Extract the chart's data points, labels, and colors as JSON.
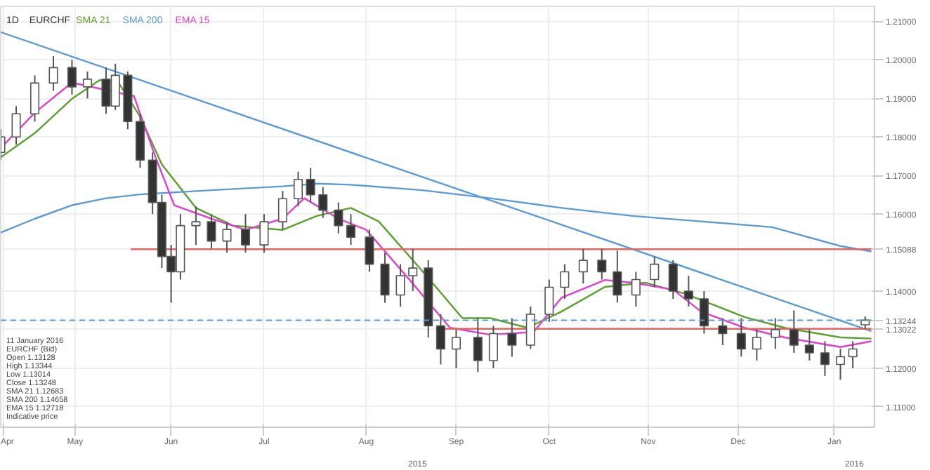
{
  "chart_data": {
    "type": "candlestick",
    "title": "EURCHF",
    "subtitle": "1D",
    "x": [
      "2015-04-07",
      "2015-04-12",
      "2015-04-18",
      "2015-04-24",
      "2015-04-30",
      "2015-05-05",
      "2015-05-11",
      "2015-05-14",
      "2015-05-18",
      "2015-05-22",
      "2015-05-26",
      "2015-05-29",
      "2015-06-01",
      "2015-06-04",
      "2015-06-09",
      "2015-06-14",
      "2015-06-19",
      "2015-06-25",
      "2015-07-01",
      "2015-07-07",
      "2015-07-12",
      "2015-07-16",
      "2015-07-20",
      "2015-07-25",
      "2015-07-29",
      "2015-08-04",
      "2015-08-09",
      "2015-08-14",
      "2015-08-18",
      "2015-08-23",
      "2015-08-27",
      "2015-09-01",
      "2015-09-08",
      "2015-09-13",
      "2015-09-19",
      "2015-09-25",
      "2015-10-01",
      "2015-10-06",
      "2015-10-12",
      "2015-10-18",
      "2015-10-23",
      "2015-10-29",
      "2015-11-04",
      "2015-11-10",
      "2015-11-15",
      "2015-11-20",
      "2015-11-26",
      "2015-12-02",
      "2015-12-07",
      "2015-12-13",
      "2015-12-19",
      "2015-12-24",
      "2015-12-29",
      "2016-01-03",
      "2016-01-07",
      "2016-01-11"
    ],
    "ohlc": [
      [
        1.176,
        1.182,
        1.174,
        1.18
      ],
      [
        1.18,
        1.188,
        1.178,
        1.186
      ],
      [
        1.186,
        1.196,
        1.184,
        1.194
      ],
      [
        1.194,
        1.201,
        1.192,
        1.198
      ],
      [
        1.198,
        1.2,
        1.191,
        1.193
      ],
      [
        1.193,
        1.197,
        1.19,
        1.195
      ],
      [
        1.195,
        1.198,
        1.186,
        1.188
      ],
      [
        1.188,
        1.199,
        1.187,
        1.196
      ],
      [
        1.196,
        1.197,
        1.182,
        1.184
      ],
      [
        1.184,
        1.186,
        1.172,
        1.174
      ],
      [
        1.174,
        1.176,
        1.16,
        1.163
      ],
      [
        1.163,
        1.165,
        1.146,
        1.149
      ],
      [
        1.149,
        1.152,
        1.137,
        1.145
      ],
      [
        1.145,
        1.16,
        1.143,
        1.157
      ],
      [
        1.157,
        1.162,
        1.152,
        1.158
      ],
      [
        1.158,
        1.16,
        1.151,
        1.153
      ],
      [
        1.153,
        1.158,
        1.15,
        1.156
      ],
      [
        1.156,
        1.16,
        1.15,
        1.152
      ],
      [
        1.152,
        1.16,
        1.15,
        1.158
      ],
      [
        1.158,
        1.166,
        1.156,
        1.164
      ],
      [
        1.164,
        1.171,
        1.162,
        1.169
      ],
      [
        1.169,
        1.172,
        1.163,
        1.165
      ],
      [
        1.165,
        1.167,
        1.159,
        1.161
      ],
      [
        1.161,
        1.163,
        1.155,
        1.157
      ],
      [
        1.157,
        1.16,
        1.152,
        1.154
      ],
      [
        1.154,
        1.156,
        1.145,
        1.147
      ],
      [
        1.147,
        1.15,
        1.137,
        1.139
      ],
      [
        1.139,
        1.147,
        1.136,
        1.144
      ],
      [
        1.144,
        1.151,
        1.14,
        1.146
      ],
      [
        1.146,
        1.148,
        1.128,
        1.131
      ],
      [
        1.131,
        1.134,
        1.121,
        1.125
      ],
      [
        1.125,
        1.13,
        1.12,
        1.128
      ],
      [
        1.128,
        1.133,
        1.119,
        1.122
      ],
      [
        1.122,
        1.131,
        1.12,
        1.129
      ],
      [
        1.129,
        1.133,
        1.123,
        1.126
      ],
      [
        1.126,
        1.136,
        1.125,
        1.134
      ],
      [
        1.134,
        1.143,
        1.132,
        1.141
      ],
      [
        1.141,
        1.147,
        1.138,
        1.145
      ],
      [
        1.145,
        1.151,
        1.142,
        1.148
      ],
      [
        1.148,
        1.151,
        1.143,
        1.145
      ],
      [
        1.145,
        1.1505,
        1.137,
        1.139
      ],
      [
        1.139,
        1.145,
        1.136,
        1.143
      ],
      [
        1.143,
        1.149,
        1.141,
        1.147
      ],
      [
        1.147,
        1.148,
        1.138,
        1.14
      ],
      [
        1.14,
        1.144,
        1.136,
        1.138
      ],
      [
        1.138,
        1.14,
        1.129,
        1.131
      ],
      [
        1.131,
        1.133,
        1.126,
        1.129
      ],
      [
        1.129,
        1.133,
        1.123,
        1.125
      ],
      [
        1.125,
        1.13,
        1.122,
        1.128
      ],
      [
        1.128,
        1.133,
        1.125,
        1.13
      ],
      [
        1.13,
        1.135,
        1.124,
        1.126
      ],
      [
        1.126,
        1.13,
        1.122,
        1.124
      ],
      [
        1.124,
        1.127,
        1.118,
        1.121
      ],
      [
        1.121,
        1.125,
        1.117,
        1.123
      ],
      [
        1.123,
        1.127,
        1.12,
        1.125
      ],
      [
        1.13128,
        1.13344,
        1.13014,
        1.13248
      ]
    ],
    "series": [
      {
        "name": "SMA 21",
        "type": "line",
        "color": "#5aa02c",
        "x": [
          "2015-04-07",
          "2015-04-18",
          "2015-04-30",
          "2015-05-09",
          "2015-05-15",
          "2015-05-22",
          "2015-05-29",
          "2015-06-09",
          "2015-06-21",
          "2015-07-07",
          "2015-07-18",
          "2015-07-29",
          "2015-08-07",
          "2015-08-21",
          "2015-09-03",
          "2015-09-12",
          "2015-09-24",
          "2015-10-05",
          "2015-10-19",
          "2015-11-01",
          "2015-11-14",
          "2015-12-03",
          "2015-12-16",
          "2016-01-03",
          "2016-01-13"
        ],
        "values": [
          1.1747,
          1.181,
          1.1899,
          1.1948,
          1.1941,
          1.1853,
          1.1729,
          1.1616,
          1.157,
          1.1559,
          1.1595,
          1.1616,
          1.1581,
          1.1453,
          1.133,
          1.133,
          1.1305,
          1.1347,
          1.1411,
          1.1422,
          1.1393,
          1.1333,
          1.1305,
          1.128,
          1.1277
        ]
      },
      {
        "name": "SMA 200",
        "type": "line",
        "color": "#5b9bd5",
        "x": [
          "2015-04-07",
          "2015-04-18",
          "2015-04-30",
          "2015-05-11",
          "2015-05-22",
          "2015-06-14",
          "2015-07-07",
          "2015-07-18",
          "2015-07-29",
          "2015-08-21",
          "2015-09-12",
          "2015-10-05",
          "2015-10-28",
          "2015-11-19",
          "2015-12-12",
          "2016-01-03",
          "2016-01-13"
        ],
        "values": [
          1.1552,
          1.1588,
          1.1623,
          1.1641,
          1.1651,
          1.1662,
          1.1672,
          1.1679,
          1.1676,
          1.1662,
          1.1641,
          1.1616,
          1.1595,
          1.1581,
          1.1566,
          1.1517,
          1.1503
        ]
      },
      {
        "name": "EMA 15",
        "type": "line",
        "color": "#e040d0",
        "x": [
          "2015-04-07",
          "2015-04-18",
          "2015-04-30",
          "2015-05-20",
          "2015-05-27",
          "2015-06-02",
          "2015-06-14",
          "2015-06-25",
          "2015-07-07",
          "2015-07-14",
          "2015-07-25",
          "2015-08-03",
          "2015-08-17",
          "2015-08-30",
          "2015-09-12",
          "2015-09-26",
          "2015-10-05",
          "2015-10-19",
          "2015-10-28",
          "2015-11-10",
          "2015-11-19",
          "2015-12-03",
          "2015-12-16",
          "2016-01-03",
          "2016-01-13"
        ],
        "values": [
          1.1771,
          1.1863,
          1.1941,
          1.1906,
          1.1747,
          1.1623,
          1.1588,
          1.1559,
          1.1588,
          1.1641,
          1.1588,
          1.1559,
          1.1429,
          1.1305,
          1.1287,
          1.1294,
          1.1383,
          1.1429,
          1.1422,
          1.1404,
          1.1347,
          1.1305,
          1.128,
          1.1255,
          1.127
        ]
      },
      {
        "type": "line",
        "color": "#5b9bd5",
        "x": [
          "2015-04-07",
          "2016-01-13"
        ],
        "values": [
          1.2072,
          1.1296
        ]
      },
      {
        "type": "line",
        "color": "#e06666",
        "x": [
          "2015-05-19",
          "2016-01-13"
        ],
        "values": [
          1.15088,
          1.15088
        ]
      },
      {
        "type": "line",
        "color": "#e06666",
        "x": [
          "2015-08-27",
          "2016-01-13"
        ],
        "values": [
          1.13022,
          1.13022
        ]
      }
    ],
    "ref_lines": [
      {
        "axis": "y",
        "value": 1.13244,
        "color": "#5b9bd5",
        "line_style": "dashed"
      }
    ],
    "xlim": [
      "2015-04-07",
      "2016-01-14"
    ],
    "xticks": [
      {
        "value": "2015-04-08",
        "label": "Apr"
      },
      {
        "value": "2015-05-01",
        "label": "May"
      },
      {
        "value": "2015-06-01",
        "label": "Jun"
      },
      {
        "value": "2015-07-01",
        "label": "Jul"
      },
      {
        "value": "2015-08-03",
        "label": "Aug"
      },
      {
        "value": "2015-09-01",
        "label": "Sep"
      },
      {
        "value": "2015-10-01",
        "label": "Oct"
      },
      {
        "value": "2015-11-02",
        "label": "Nov"
      },
      {
        "value": "2015-12-01",
        "label": "Dec"
      },
      {
        "value": "2016-01-01",
        "label": "Jan"
      }
    ],
    "ylim": [
      1.1047,
      1.2139
    ],
    "yticks": [
      {
        "value": 1.11,
        "label": "1.11000"
      },
      {
        "value": 1.12,
        "label": "1.12000"
      },
      {
        "value": 1.13022,
        "label": "1.13022"
      },
      {
        "value": 1.13244,
        "label": "1.13244"
      },
      {
        "value": 1.14,
        "label": "1.14000"
      },
      {
        "value": 1.15088,
        "label": "1.15088"
      },
      {
        "value": 1.16,
        "label": "1.16000"
      },
      {
        "value": 1.17,
        "label": "1.17000"
      },
      {
        "value": 1.18,
        "label": "1.18000"
      },
      {
        "value": 1.19,
        "label": "1.19000"
      },
      {
        "value": 1.2,
        "label": "1.20000"
      },
      {
        "value": 1.21,
        "label": "1.21000"
      }
    ],
    "grid": true,
    "legend": "top left",
    "annotations": [
      "11 January 2016",
      "EURCHF (Bid)",
      "Open 1.13128",
      "High 1.13344",
      "Low 1.13014",
      "Close 1.13248",
      "SMA 21 1.12683",
      "SMA 200 1.14658",
      "EMA 15 1.12718",
      "Indicative price",
      "2015",
      "2016"
    ]
  }
}
